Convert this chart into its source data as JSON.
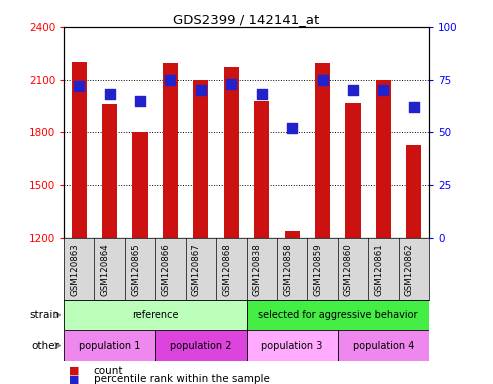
{
  "title": "GDS2399 / 142141_at",
  "samples": [
    "GSM120863",
    "GSM120864",
    "GSM120865",
    "GSM120866",
    "GSM120867",
    "GSM120868",
    "GSM120838",
    "GSM120858",
    "GSM120859",
    "GSM120860",
    "GSM120861",
    "GSM120862"
  ],
  "counts": [
    2200,
    1960,
    1800,
    2195,
    2100,
    2170,
    1980,
    1240,
    2195,
    1970,
    2100,
    1730
  ],
  "percentile_ranks": [
    72,
    68,
    65,
    75,
    70,
    73,
    68,
    52,
    75,
    70,
    70,
    62
  ],
  "y_min": 1200,
  "y_max": 2400,
  "y_ticks": [
    1200,
    1500,
    1800,
    2100,
    2400
  ],
  "right_y_ticks": [
    0,
    25,
    50,
    75,
    100
  ],
  "bar_color": "#cc1111",
  "dot_color": "#2222cc",
  "strain_labels": [
    {
      "text": "reference",
      "start": 0,
      "end": 5,
      "color": "#bbffbb"
    },
    {
      "text": "selected for aggressive behavior",
      "start": 6,
      "end": 11,
      "color": "#44ee44"
    }
  ],
  "other_labels": [
    {
      "text": "population 1",
      "start": 0,
      "end": 2,
      "color": "#ee88ee"
    },
    {
      "text": "population 2",
      "start": 3,
      "end": 5,
      "color": "#dd44dd"
    },
    {
      "text": "population 3",
      "start": 6,
      "end": 8,
      "color": "#ffaaff"
    },
    {
      "text": "population 4",
      "start": 9,
      "end": 11,
      "color": "#ee88ee"
    }
  ],
  "strain_row_label": "strain",
  "other_row_label": "other",
  "legend_count_label": "count",
  "legend_percentile_label": "percentile rank within the sample",
  "bar_width": 0.5,
  "dot_size": 55,
  "tick_bg": "#d8d8d8"
}
